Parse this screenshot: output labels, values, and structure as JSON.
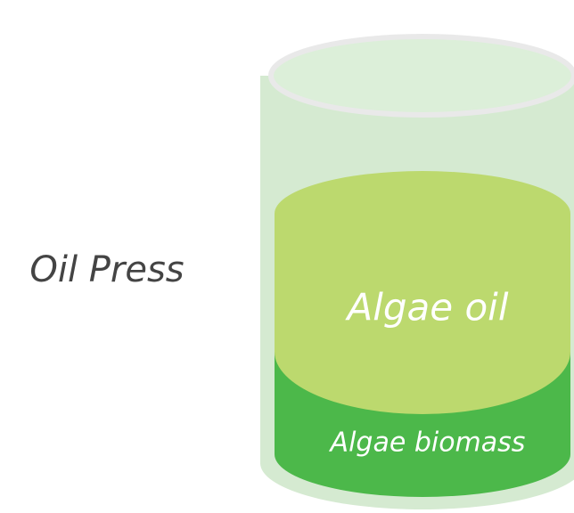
{
  "title": "Oil Press",
  "layers": [
    {
      "label": "Algae oil"
    },
    {
      "label": "Algae biomass"
    }
  ]
}
